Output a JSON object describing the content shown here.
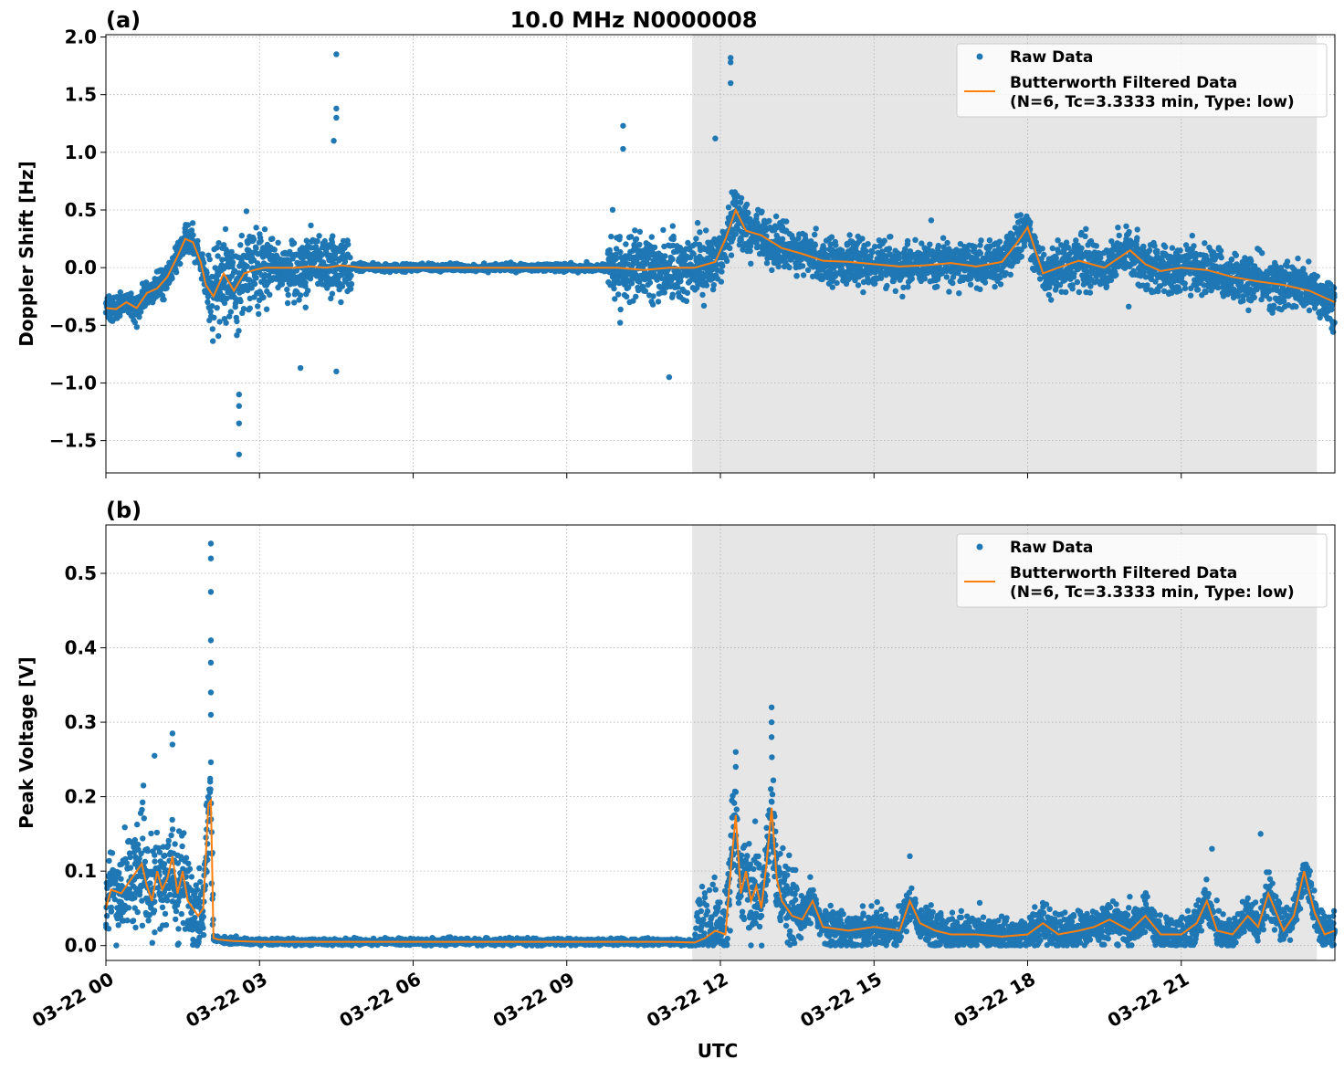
{
  "figure": {
    "title": "10.0 MHz N0000008",
    "xlabel": "UTC"
  },
  "colors": {
    "raw": "#1f77b4",
    "filtered": "#ff7f0e",
    "shade": "#e6e6e6",
    "grid": "#b0b0b0"
  },
  "legend": {
    "raw_label": "Raw Data",
    "filt_label_1": "Butterworth Filtered Data",
    "filt_label_2": "(N=6, Tc=3.3333 min, Type: low)"
  },
  "chart_data": [
    {
      "type": "scatter",
      "panel_label": "(a)",
      "title": "10.0 MHz N0000008",
      "ylabel": "Doppler Shift [Hz]",
      "xlabel": "UTC",
      "x_units": "hours UTC on 03-22",
      "xlim": [
        0,
        24
      ],
      "ylim": [
        -1.78,
        2.02
      ],
      "yticks": [
        -1.5,
        -1.0,
        -0.5,
        0.0,
        0.5,
        1.0,
        1.5,
        2.0
      ],
      "ytick_labels": [
        "−1.5",
        "−1.0",
        "−0.5",
        "0.0",
        "0.5",
        "1.0",
        "1.5",
        "2.0"
      ],
      "xticks": [
        0,
        3,
        6,
        9,
        12,
        15,
        18,
        21
      ],
      "xtick_labels": [
        "",
        "",
        "",
        "",
        "",
        "",
        "",
        ""
      ],
      "shaded_region": [
        11.45,
        23.65
      ],
      "grid": true,
      "legend_position": "upper right",
      "series": [
        {
          "name": "Raw Data",
          "kind": "points",
          "note_outliers": [
            [
              4.5,
              1.85
            ],
            [
              12.2,
              1.82
            ],
            [
              12.2,
              1.78
            ],
            [
              12.2,
              1.6
            ],
            [
              4.5,
              1.38
            ],
            [
              4.5,
              1.3
            ],
            [
              10.1,
              1.23
            ],
            [
              4.45,
              1.1
            ],
            [
              11.9,
              1.12
            ],
            [
              10.1,
              1.03
            ],
            [
              2.6,
              -1.62
            ],
            [
              2.6,
              -1.35
            ],
            [
              2.6,
              -1.2
            ],
            [
              2.6,
              -1.1
            ],
            [
              11.0,
              -0.95
            ],
            [
              4.5,
              -0.9
            ],
            [
              3.8,
              -0.87
            ]
          ]
        },
        {
          "name": "Butterworth Filtered Data",
          "kind": "line",
          "x": [
            0,
            0.2,
            0.4,
            0.6,
            0.8,
            1.0,
            1.2,
            1.4,
            1.55,
            1.7,
            1.85,
            1.95,
            2.1,
            2.3,
            2.5,
            2.7,
            2.9,
            3.1,
            3.4,
            3.7,
            4.0,
            4.3,
            4.6,
            5.0,
            6.0,
            7.0,
            8.0,
            9.0,
            10.0,
            10.5,
            11.0,
            11.5,
            11.9,
            12.1,
            12.3,
            12.5,
            12.8,
            13.2,
            13.6,
            14.0,
            14.5,
            15.0,
            15.5,
            16.0,
            16.5,
            17.0,
            17.5,
            17.8,
            18.0,
            18.3,
            18.6,
            19.0,
            19.5,
            20.0,
            20.3,
            20.6,
            21.0,
            21.5,
            22.0,
            22.5,
            23.0,
            23.5,
            24.0
          ],
          "y": [
            -0.35,
            -0.36,
            -0.3,
            -0.35,
            -0.22,
            -0.18,
            -0.08,
            0.1,
            0.25,
            0.22,
            0.05,
            -0.15,
            -0.25,
            -0.05,
            -0.2,
            -0.05,
            -0.02,
            0.0,
            0.0,
            0.0,
            0.01,
            0.0,
            0.02,
            0.0,
            0.0,
            0.0,
            0.0,
            0.0,
            0.0,
            -0.02,
            0.0,
            0.0,
            0.05,
            0.25,
            0.5,
            0.32,
            0.28,
            0.17,
            0.12,
            0.06,
            0.05,
            0.03,
            0.01,
            0.02,
            0.04,
            0.01,
            0.05,
            0.22,
            0.35,
            -0.05,
            0.0,
            0.06,
            0.0,
            0.15,
            0.03,
            -0.03,
            0.0,
            -0.02,
            -0.08,
            -0.12,
            -0.15,
            -0.2,
            -0.3
          ]
        }
      ]
    },
    {
      "type": "scatter",
      "panel_label": "(b)",
      "title": "",
      "ylabel": "Peak Voltage [V]",
      "xlabel": "UTC",
      "x_units": "hours UTC on 03-22",
      "xlim": [
        0,
        24
      ],
      "ylim": [
        -0.02,
        0.565
      ],
      "yticks": [
        0.0,
        0.1,
        0.2,
        0.3,
        0.4,
        0.5
      ],
      "ytick_labels": [
        "0.0",
        "0.1",
        "0.2",
        "0.3",
        "0.4",
        "0.5"
      ],
      "xticks": [
        0,
        3,
        6,
        9,
        12,
        15,
        18,
        21
      ],
      "xtick_labels": [
        "03-22 00",
        "03-22 03",
        "03-22 06",
        "03-22 09",
        "03-22 12",
        "03-22 15",
        "03-22 18",
        "03-22 21"
      ],
      "shaded_region": [
        11.45,
        23.65
      ],
      "grid": true,
      "legend_position": "upper right",
      "series": [
        {
          "name": "Raw Data",
          "kind": "points",
          "note_outliers": [
            [
              2.05,
              0.54
            ],
            [
              2.05,
              0.52
            ],
            [
              2.05,
              0.475
            ],
            [
              2.05,
              0.41
            ],
            [
              2.05,
              0.38
            ],
            [
              2.05,
              0.34
            ],
            [
              2.05,
              0.31
            ],
            [
              1.3,
              0.285
            ],
            [
              1.3,
              0.27
            ],
            [
              0.95,
              0.255
            ],
            [
              13.0,
              0.32
            ],
            [
              13.0,
              0.3
            ],
            [
              12.3,
              0.26
            ],
            [
              12.3,
              0.24
            ],
            [
              13.0,
              0.28
            ],
            [
              22.55,
              0.15
            ],
            [
              21.6,
              0.13
            ],
            [
              15.7,
              0.12
            ]
          ]
        },
        {
          "name": "Butterworth Filtered Data",
          "kind": "line",
          "x": [
            0,
            0.1,
            0.3,
            0.5,
            0.7,
            0.8,
            0.9,
            1.0,
            1.1,
            1.2,
            1.3,
            1.4,
            1.5,
            1.6,
            1.7,
            1.8,
            1.9,
            2.0,
            2.05,
            2.1,
            2.2,
            2.5,
            3.0,
            4.0,
            5.0,
            6.0,
            7.0,
            8.0,
            9.0,
            10.0,
            11.0,
            11.5,
            11.7,
            11.9,
            12.1,
            12.2,
            12.3,
            12.4,
            12.5,
            12.6,
            12.7,
            12.8,
            12.9,
            13.0,
            13.1,
            13.2,
            13.4,
            13.6,
            13.8,
            14.0,
            14.5,
            15.0,
            15.5,
            15.7,
            15.9,
            16.2,
            16.5,
            17.0,
            17.5,
            18.0,
            18.3,
            18.6,
            19.0,
            19.3,
            19.6,
            20.0,
            20.3,
            20.6,
            21.0,
            21.3,
            21.5,
            21.7,
            22.0,
            22.3,
            22.5,
            22.7,
            23.0,
            23.2,
            23.4,
            23.6,
            23.8,
            24.0
          ],
          "y": [
            0.05,
            0.075,
            0.07,
            0.09,
            0.11,
            0.08,
            0.06,
            0.1,
            0.075,
            0.09,
            0.12,
            0.07,
            0.1,
            0.06,
            0.05,
            0.04,
            0.05,
            0.19,
            0.195,
            0.01,
            0.008,
            0.006,
            0.005,
            0.005,
            0.005,
            0.005,
            0.005,
            0.005,
            0.005,
            0.005,
            0.005,
            0.004,
            0.01,
            0.02,
            0.015,
            0.1,
            0.175,
            0.07,
            0.1,
            0.06,
            0.08,
            0.05,
            0.11,
            0.185,
            0.09,
            0.06,
            0.04,
            0.035,
            0.06,
            0.025,
            0.02,
            0.025,
            0.02,
            0.06,
            0.03,
            0.02,
            0.015,
            0.015,
            0.012,
            0.015,
            0.03,
            0.015,
            0.02,
            0.025,
            0.035,
            0.02,
            0.04,
            0.015,
            0.015,
            0.03,
            0.06,
            0.02,
            0.015,
            0.04,
            0.025,
            0.07,
            0.02,
            0.04,
            0.1,
            0.045,
            0.015,
            0.02
          ]
        }
      ]
    }
  ]
}
